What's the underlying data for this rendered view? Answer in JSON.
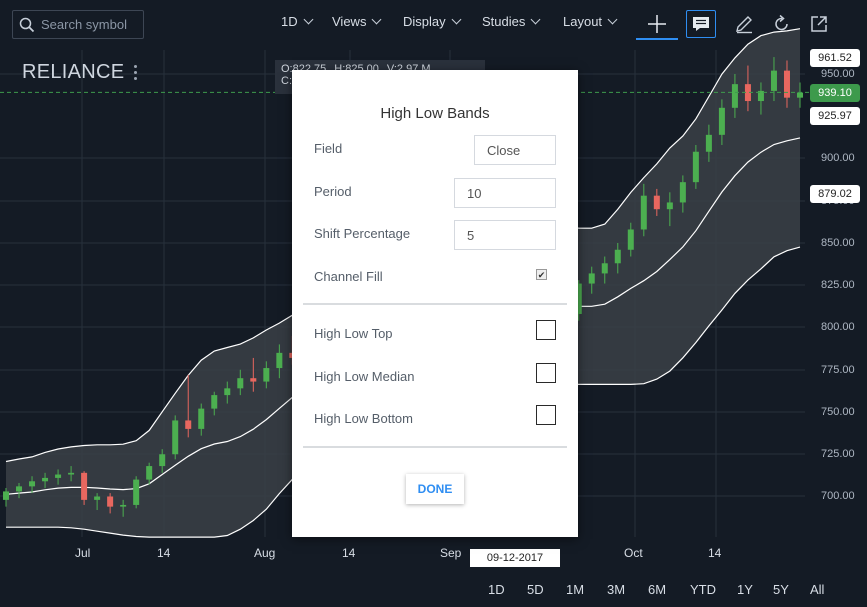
{
  "search": {
    "placeholder": "Search symbol"
  },
  "toolbar": {
    "menus": [
      "1D",
      "Views",
      "Display",
      "Studies",
      "Layout"
    ]
  },
  "symbol": "RELIANCE",
  "ohlc": {
    "open": "O:822.75",
    "high": "H:825.00",
    "volume": "V:2.97 M",
    "close": "C:"
  },
  "y_axis_labels": [
    "950.00",
    "900.00",
    "875.00",
    "850.00",
    "825.00",
    "800.00",
    "775.00",
    "750.00",
    "725.00",
    "700.00"
  ],
  "price_tags": {
    "top_band": "961.52",
    "last_price": "939.10",
    "median": "925.97",
    "bottom_band": "879.02"
  },
  "x_axis_labels": [
    "Jul",
    "14",
    "Aug",
    "14",
    "Sep",
    "Oct",
    "14"
  ],
  "crosshair_date": "09-12-2017",
  "ranges": [
    "1D",
    "5D",
    "1M",
    "3M",
    "6M",
    "YTD",
    "1Y",
    "5Y",
    "All"
  ],
  "colors": {
    "up": "#4caf50",
    "down": "#e8675f",
    "band_fill": "#3a3f46",
    "band_line": "#ffffff",
    "accent": "#2f8ef2"
  },
  "chart_data": {
    "type": "candlestick",
    "ylim": [
      685,
      965
    ],
    "last_price": 939.1,
    "series": [
      {
        "name": "High Low Bands"
      }
    ],
    "x_labels": [
      "Jul",
      "14",
      "Aug",
      "14",
      "Sep",
      "Oct",
      "14"
    ],
    "candles": [
      [
        698,
        705,
        694,
        703
      ],
      [
        703,
        708,
        699,
        706
      ],
      [
        706,
        712,
        702,
        709
      ],
      [
        709,
        714,
        705,
        711
      ],
      [
        711,
        716,
        707,
        713
      ],
      [
        713,
        718,
        709,
        714
      ],
      [
        714,
        715,
        695,
        698
      ],
      [
        698,
        702,
        692,
        700
      ],
      [
        700,
        702,
        690,
        694
      ],
      [
        694,
        698,
        688,
        695
      ],
      [
        695,
        712,
        693,
        710
      ],
      [
        710,
        720,
        707,
        718
      ],
      [
        718,
        728,
        714,
        725
      ],
      [
        725,
        748,
        722,
        745
      ],
      [
        745,
        772,
        735,
        740
      ],
      [
        740,
        755,
        736,
        752
      ],
      [
        752,
        762,
        748,
        760
      ],
      [
        760,
        768,
        755,
        764
      ],
      [
        764,
        775,
        760,
        770
      ],
      [
        770,
        782,
        762,
        768
      ],
      [
        768,
        780,
        764,
        776
      ],
      [
        776,
        790,
        770,
        785
      ],
      [
        785,
        795,
        778,
        782
      ],
      [
        782,
        792,
        775,
        788
      ],
      [
        788,
        805,
        784,
        800
      ],
      [
        800,
        815,
        795,
        810
      ],
      [
        810,
        818,
        804,
        812
      ],
      [
        812,
        820,
        800,
        805
      ],
      [
        805,
        814,
        790,
        795
      ],
      [
        795,
        812,
        792,
        808
      ],
      [
        808,
        818,
        802,
        815
      ],
      [
        815,
        825,
        808,
        812
      ],
      [
        812,
        830,
        808,
        825
      ],
      [
        825,
        840,
        820,
        836
      ]
    ],
    "candles_right": [
      [
        840,
        850,
        830,
        835
      ],
      [
        835,
        842,
        822,
        826
      ],
      [
        826,
        832,
        815,
        820
      ],
      [
        820,
        826,
        806,
        812
      ],
      [
        812,
        822,
        805,
        818
      ],
      [
        818,
        825,
        802,
        808
      ],
      [
        808,
        812,
        790,
        795
      ],
      [
        795,
        800,
        780,
        785
      ],
      [
        785,
        800,
        782,
        798
      ],
      [
        798,
        812,
        794,
        808
      ],
      [
        808,
        828,
        804,
        826
      ],
      [
        826,
        836,
        820,
        832
      ],
      [
        832,
        842,
        826,
        838
      ],
      [
        838,
        850,
        832,
        846
      ],
      [
        846,
        862,
        842,
        858
      ],
      [
        858,
        885,
        854,
        878
      ],
      [
        878,
        882,
        866,
        870
      ],
      [
        870,
        880,
        860,
        874
      ],
      [
        874,
        890,
        868,
        886
      ],
      [
        886,
        908,
        882,
        904
      ],
      [
        904,
        920,
        898,
        914
      ],
      [
        914,
        935,
        908,
        930
      ],
      [
        930,
        950,
        924,
        944
      ],
      [
        944,
        955,
        928,
        934
      ],
      [
        934,
        945,
        926,
        940
      ],
      [
        940,
        960,
        934,
        952
      ],
      [
        952,
        958,
        930,
        936
      ],
      [
        936,
        945,
        930,
        939
      ]
    ]
  }
}
